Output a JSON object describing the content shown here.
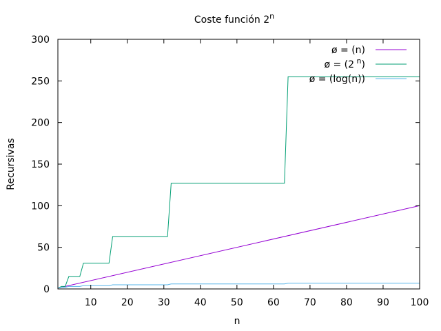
{
  "chart_data": {
    "type": "line",
    "title": "Coste función 2",
    "title_sup": "n",
    "xlabel": "n",
    "ylabel": "Recursivas",
    "xlim": [
      1,
      100
    ],
    "ylim": [
      0,
      300
    ],
    "xticks": [
      10,
      20,
      30,
      40,
      50,
      60,
      70,
      80,
      90,
      100
    ],
    "yticks": [
      0,
      50,
      100,
      150,
      200,
      250,
      300
    ],
    "grid": false,
    "legend_position": "top-right",
    "series": [
      {
        "name": "ø = (n)",
        "color": "#9400d3",
        "x": [
          1,
          100
        ],
        "y": [
          1,
          100
        ]
      },
      {
        "name": "ø = (2",
        "name_sup": "n",
        "name_tail": ")",
        "color": "#009e73",
        "x": [
          1,
          2,
          3,
          4,
          7,
          8,
          15,
          16,
          31,
          32,
          63,
          64,
          100
        ],
        "y": [
          1,
          3,
          3,
          15,
          15,
          31,
          31,
          63,
          63,
          127,
          127,
          255,
          255
        ]
      },
      {
        "name": "ø = (log(n))",
        "color": "#56b4e9",
        "x": [
          1,
          2,
          3,
          4,
          7,
          8,
          15,
          16,
          31,
          32,
          63,
          64,
          100
        ],
        "y": [
          1,
          2,
          2,
          3,
          3,
          4,
          4,
          5,
          5,
          6,
          6,
          7,
          7
        ]
      }
    ]
  }
}
